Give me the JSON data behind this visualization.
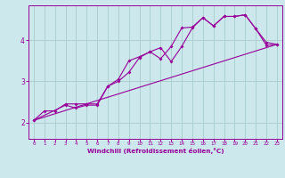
{
  "xlabel": "Windchill (Refroidissement éolien,°C)",
  "bg_color": "#cce8ec",
  "line_color": "#990099",
  "grid_color": "#aacccc",
  "xlim": [
    -0.5,
    23.5
  ],
  "ylim": [
    1.6,
    4.85
  ],
  "yticks": [
    2,
    3,
    4
  ],
  "xticks": [
    0,
    1,
    2,
    3,
    4,
    5,
    6,
    7,
    8,
    9,
    10,
    11,
    12,
    13,
    14,
    15,
    16,
    17,
    18,
    19,
    20,
    21,
    22,
    23
  ],
  "series1_x": [
    0,
    1,
    2,
    3,
    4,
    5,
    6,
    7,
    8,
    9,
    10,
    11,
    12,
    13,
    14,
    15,
    16,
    17,
    18,
    19,
    20,
    21,
    22,
    23
  ],
  "series1_y": [
    2.05,
    2.28,
    2.28,
    2.45,
    2.45,
    2.45,
    2.45,
    2.88,
    3.05,
    3.5,
    3.6,
    3.72,
    3.82,
    3.48,
    3.85,
    4.3,
    4.55,
    4.35,
    4.58,
    4.58,
    4.62,
    4.28,
    3.88,
    3.9
  ],
  "series2_x": [
    0,
    3,
    4,
    5,
    6,
    7,
    8,
    9,
    10,
    11,
    12,
    13,
    14,
    15,
    16,
    17,
    18,
    19,
    20,
    21,
    22,
    23
  ],
  "series2_y": [
    2.05,
    2.42,
    2.35,
    2.42,
    2.42,
    2.88,
    3.0,
    3.22,
    3.58,
    3.72,
    3.55,
    3.85,
    4.3,
    4.32,
    4.55,
    4.35,
    4.58,
    4.58,
    4.62,
    4.28,
    3.95,
    3.9
  ],
  "line_x": [
    0,
    23
  ],
  "line_y": [
    2.05,
    3.9
  ]
}
